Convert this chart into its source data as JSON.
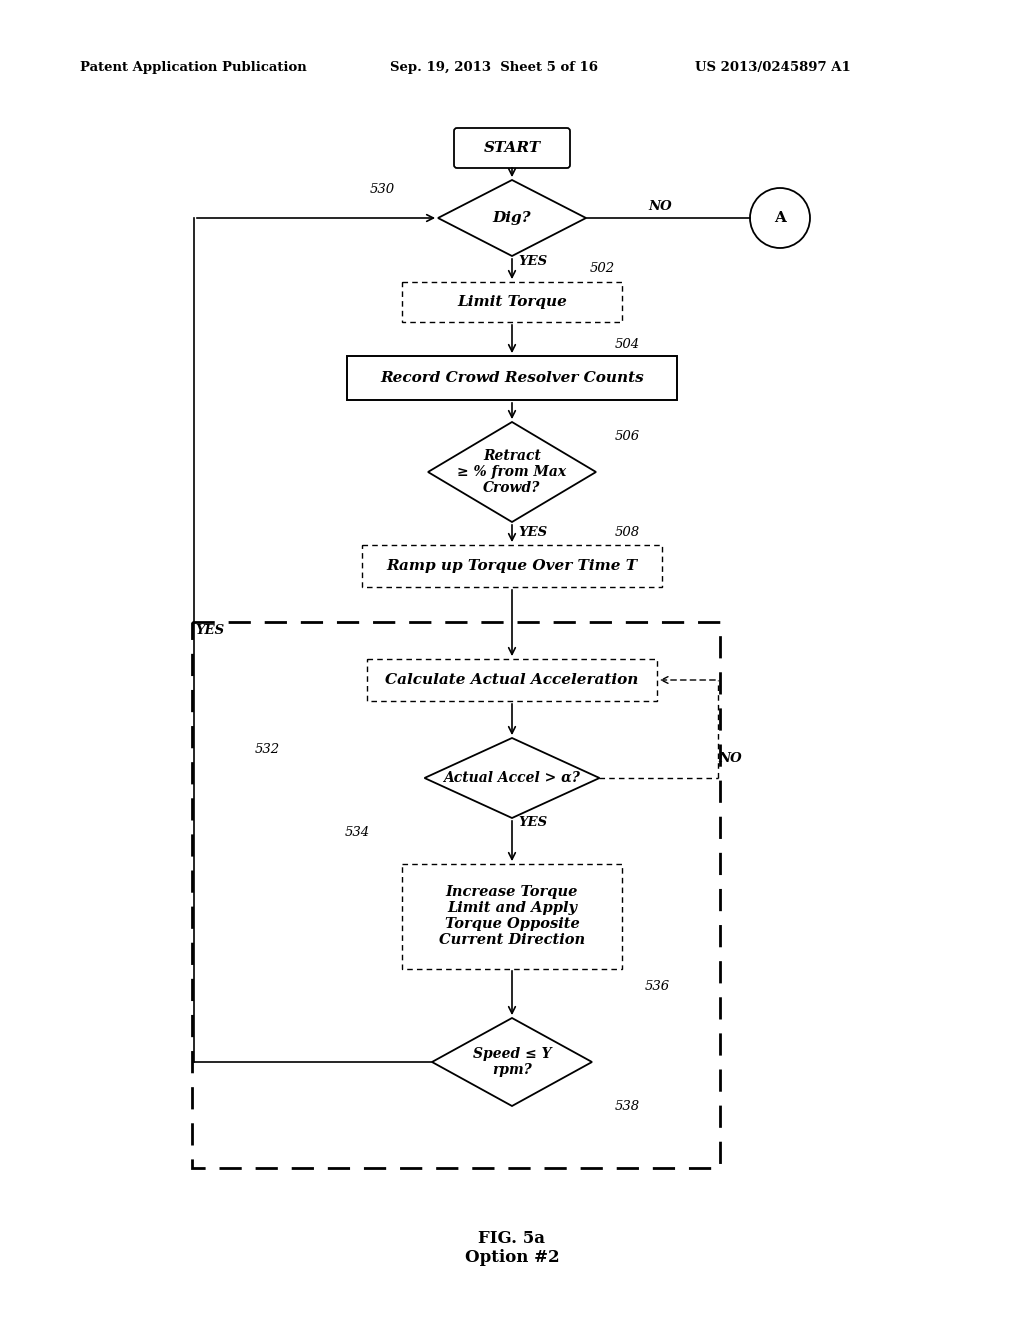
{
  "title_left": "Patent Application Publication",
  "title_mid": "Sep. 19, 2013  Sheet 5 of 16",
  "title_right": "US 2013/0245897 A1",
  "fig_label": "FIG. 5a\nOption #2",
  "bg_color": "#ffffff"
}
